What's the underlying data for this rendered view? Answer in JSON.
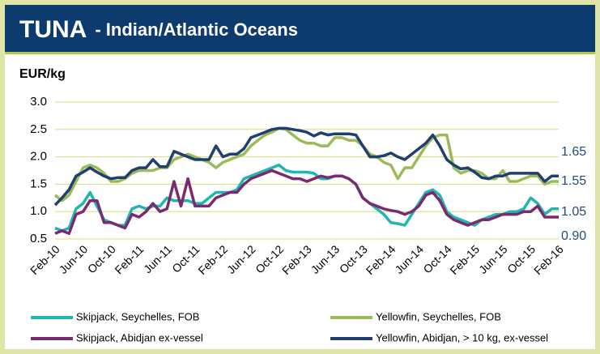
{
  "chart_data": {
    "type": "line",
    "title": "TUNA",
    "subtitle": "- Indian/Atlantic Oceans",
    "y_label": "EUR/kg",
    "categories": [
      "Feb-10",
      null,
      null,
      null,
      "Jun-10",
      null,
      null,
      null,
      "Oct-10",
      null,
      null,
      null,
      "Feb-11",
      null,
      null,
      null,
      "Jun-11",
      null,
      null,
      null,
      "Oct-11",
      null,
      null,
      null,
      "Feb-12",
      null,
      null,
      null,
      "Jun-12",
      null,
      null,
      null,
      "Oct-12",
      null,
      null,
      null,
      "Feb-13",
      null,
      null,
      null,
      "Jun-13",
      null,
      null,
      null,
      "Oct-13",
      null,
      null,
      null,
      "Feb-14",
      null,
      null,
      null,
      "Jun-14",
      null,
      null,
      null,
      "Oct-14",
      null,
      null,
      null,
      "Feb-15",
      null,
      null,
      null,
      "Jun-15",
      null,
      null,
      null,
      "Oct-15",
      null,
      null,
      null,
      "Feb-16"
    ],
    "series": [
      {
        "name": "Skipjack, Seychelles, FOB",
        "color": "#1fb5b0",
        "end_label": "1.05",
        "values": [
          0.7,
          0.65,
          0.7,
          1.05,
          1.15,
          1.35,
          1.1,
          0.85,
          0.8,
          0.75,
          0.75,
          1.05,
          1.1,
          1.05,
          1.1,
          1.1,
          1.25,
          1.2,
          1.2,
          1.2,
          1.15,
          1.15,
          1.25,
          1.35,
          1.35,
          1.35,
          1.4,
          1.6,
          1.65,
          1.7,
          1.75,
          1.8,
          1.85,
          1.75,
          1.72,
          1.72,
          1.72,
          1.7,
          1.6,
          1.6,
          1.65,
          1.65,
          1.6,
          1.5,
          1.25,
          1.15,
          1.05,
          0.95,
          0.8,
          0.78,
          0.75,
          0.95,
          1.15,
          1.35,
          1.4,
          1.3,
          1.0,
          0.9,
          0.85,
          0.8,
          0.75,
          0.85,
          0.9,
          0.95,
          0.95,
          1.0,
          1.0,
          1.05,
          1.25,
          1.15,
          0.95,
          1.05,
          1.05
        ]
      },
      {
        "name": "Yellowfin, Seychelles, FOB",
        "color": "#9bbb59",
        "end_label": "1.55",
        "values": [
          1.3,
          1.2,
          1.3,
          1.55,
          1.8,
          1.85,
          1.8,
          1.7,
          1.55,
          1.55,
          1.6,
          1.7,
          1.75,
          1.75,
          1.75,
          1.8,
          1.8,
          1.95,
          2.0,
          2.05,
          2.0,
          1.95,
          1.9,
          1.8,
          1.9,
          1.95,
          2.0,
          2.05,
          2.2,
          2.3,
          2.4,
          2.45,
          2.52,
          2.5,
          2.4,
          2.3,
          2.25,
          2.25,
          2.2,
          2.2,
          2.35,
          2.35,
          2.3,
          2.3,
          2.2,
          2.05,
          2.0,
          1.9,
          1.85,
          1.6,
          1.8,
          1.8,
          2.0,
          2.2,
          2.35,
          2.4,
          2.4,
          1.8,
          1.7,
          1.75,
          1.75,
          1.7,
          1.6,
          1.6,
          1.75,
          1.55,
          1.55,
          1.6,
          1.65,
          1.65,
          1.5,
          1.55,
          1.55
        ]
      },
      {
        "name": "Skipjack, Abidjan ex-vessel",
        "color": "#7b2a6f",
        "end_label": "0.90",
        "values": [
          0.6,
          0.65,
          0.6,
          0.95,
          1.0,
          1.2,
          1.2,
          0.8,
          0.8,
          0.75,
          0.7,
          0.95,
          0.9,
          1.0,
          1.15,
          1.0,
          1.05,
          1.55,
          1.1,
          1.6,
          1.1,
          1.1,
          1.1,
          1.25,
          1.3,
          1.35,
          1.35,
          1.5,
          1.6,
          1.65,
          1.7,
          1.75,
          1.7,
          1.65,
          1.6,
          1.6,
          1.55,
          1.6,
          1.65,
          1.62,
          1.65,
          1.65,
          1.6,
          1.5,
          1.25,
          1.15,
          1.1,
          1.05,
          1.02,
          1.0,
          0.95,
          1.0,
          1.1,
          1.3,
          1.35,
          1.2,
          0.95,
          0.85,
          0.8,
          0.75,
          0.8,
          0.85,
          0.85,
          0.9,
          0.95,
          0.95,
          0.95,
          1.0,
          1.0,
          1.1,
          0.9,
          0.9,
          0.9
        ]
      },
      {
        "name": "Yellowfin, Abidjan, > 10 kg, ex-vessel",
        "color": "#1f3f6e",
        "end_label": "1.65",
        "values": [
          1.12,
          1.25,
          1.4,
          1.65,
          1.72,
          1.8,
          1.72,
          1.65,
          1.6,
          1.62,
          1.62,
          1.75,
          1.8,
          1.8,
          1.95,
          1.82,
          1.82,
          2.1,
          2.05,
          2.0,
          1.95,
          1.95,
          1.95,
          2.2,
          2.0,
          2.05,
          2.05,
          2.15,
          2.35,
          2.4,
          2.45,
          2.5,
          2.52,
          2.52,
          2.5,
          2.48,
          2.45,
          2.38,
          2.44,
          2.4,
          2.42,
          2.42,
          2.42,
          2.4,
          2.2,
          2.0,
          2.0,
          2.02,
          2.07,
          2.0,
          1.95,
          2.05,
          2.15,
          2.25,
          2.4,
          2.2,
          1.95,
          1.85,
          1.78,
          1.8,
          1.72,
          1.62,
          1.6,
          1.65,
          1.65,
          1.7,
          1.7,
          1.7,
          1.7,
          1.7,
          1.55,
          1.65,
          1.65
        ]
      }
    ],
    "ylim": [
      0.5,
      3.0
    ],
    "yticks": [
      0.5,
      {
        "value": 1,
        "label": "1.0"
      },
      1.5,
      {
        "value": 2,
        "label": "2.0"
      },
      2.5,
      {
        "value": 3,
        "label": "3.0"
      }
    ],
    "grid": true
  }
}
